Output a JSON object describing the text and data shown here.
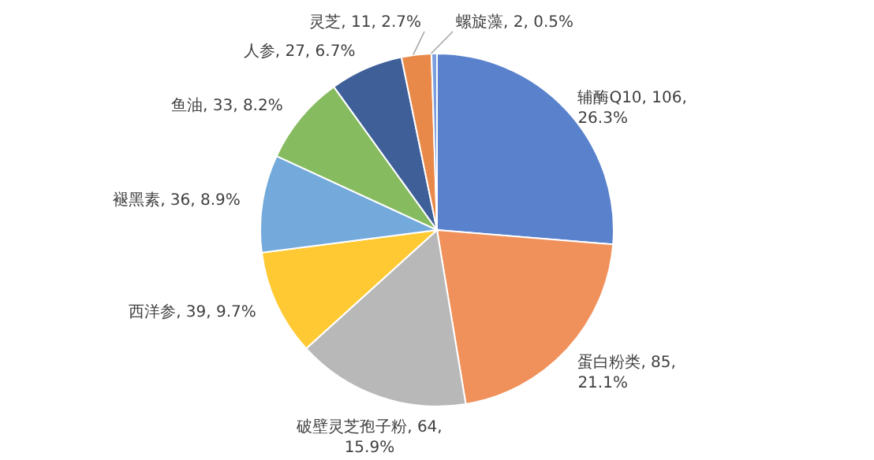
{
  "chart_data": {
    "type": "pie",
    "categories": [
      "辅酶Q10",
      "蛋白粉类",
      "破壁灵芝孢子粉",
      "西洋参",
      "褪黑素",
      "鱼油",
      "人参",
      "灵芝",
      "螺旋藻"
    ],
    "values": [
      106,
      85,
      64,
      39,
      36,
      33,
      27,
      11,
      2
    ],
    "value_labels": [
      "106, 26.3%",
      "85, 21.1%",
      "64, 15.9%",
      "39, 9.7%",
      "36, 8.9%",
      "33, 8.2%",
      "27, 6.7%",
      "11, 2.7%",
      "2, 0.5%"
    ],
    "colors": [
      "#5a82cc",
      "#f0905a",
      "#b8b8b8",
      "#ffc933",
      "#74a9db",
      "#86bb60",
      "#3f5f99",
      "#e8894a",
      "#7a9fdc"
    ]
  }
}
